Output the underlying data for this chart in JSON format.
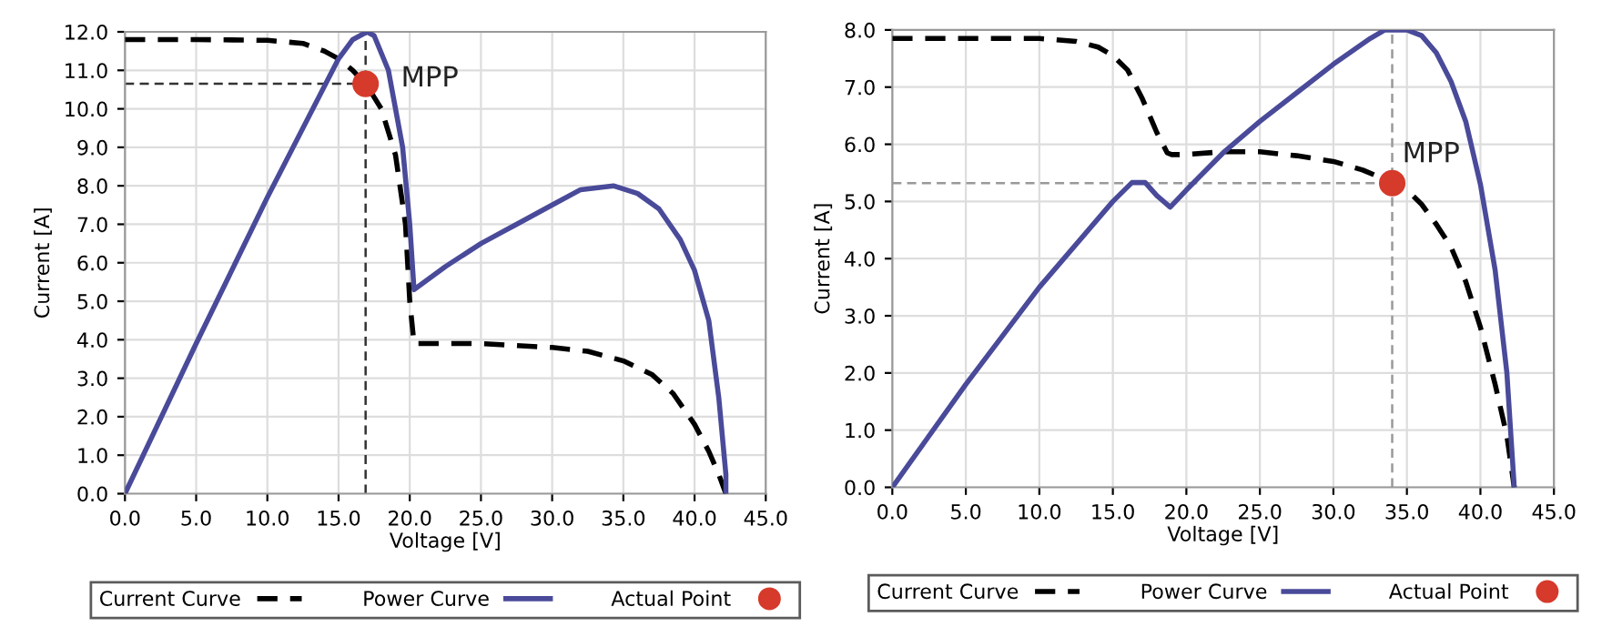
{
  "chart_data": [
    {
      "type": "line",
      "xlabel": "Voltage [V]",
      "ylabel": "Current [A]",
      "xlim": [
        0,
        45
      ],
      "ylim": [
        0,
        12
      ],
      "xticks": [
        {
          "value": 0,
          "label": "0.0"
        },
        {
          "value": 5,
          "label": "5.0"
        },
        {
          "value": 10,
          "label": "10.0"
        },
        {
          "value": 15,
          "label": "15.0"
        },
        {
          "value": 20,
          "label": "20.0"
        },
        {
          "value": 25,
          "label": "25.0"
        },
        {
          "value": 30,
          "label": "30.0"
        },
        {
          "value": 35,
          "label": "35.0"
        },
        {
          "value": 40,
          "label": "40.0"
        },
        {
          "value": 45,
          "label": "45.0"
        }
      ],
      "yticks": [
        {
          "value": 0,
          "label": "0.0"
        },
        {
          "value": 1,
          "label": "1.0"
        },
        {
          "value": 2,
          "label": "2.0"
        },
        {
          "value": 3,
          "label": "3.0"
        },
        {
          "value": 4,
          "label": "4.0"
        },
        {
          "value": 5,
          "label": "5.0"
        },
        {
          "value": 6,
          "label": "6.0"
        },
        {
          "value": 7,
          "label": "7.0"
        },
        {
          "value": 8,
          "label": "8.0"
        },
        {
          "value": 9,
          "label": "9.0"
        },
        {
          "value": 10,
          "label": "10.0"
        },
        {
          "value": 11,
          "label": "11.0"
        },
        {
          "value": 12,
          "label": "12.0"
        }
      ],
      "grid": true,
      "legend": "bottom",
      "series": [
        {
          "name": "Current Curve",
          "color": "#000000",
          "line_style": "dashed",
          "x": [
            0,
            5,
            10,
            12.5,
            14,
            15,
            16,
            17,
            18,
            19,
            19.7,
            20,
            20.3,
            22,
            25,
            27.5,
            30,
            32.5,
            35,
            37,
            38.5,
            40,
            41,
            41.7,
            42.2
          ],
          "values": [
            11.8,
            11.8,
            11.78,
            11.7,
            11.5,
            11.3,
            11.0,
            10.6,
            10.0,
            8.8,
            7.0,
            5.0,
            3.9,
            3.9,
            3.9,
            3.85,
            3.8,
            3.7,
            3.45,
            3.1,
            2.6,
            1.8,
            1.1,
            0.5,
            0
          ]
        },
        {
          "name": "Power Curve",
          "color": "#4a4a9a",
          "line_style": "solid",
          "x": [
            0,
            5,
            10,
            15,
            16,
            17,
            17.5,
            18.5,
            19.5,
            20,
            20.3,
            22.5,
            25,
            27.5,
            30,
            32,
            34.3,
            36,
            37.5,
            39,
            40,
            41,
            41.7,
            42.2,
            42.2
          ],
          "values": [
            0,
            3.9,
            7.7,
            11.3,
            11.8,
            12.0,
            11.9,
            11.0,
            9.0,
            7.0,
            5.3,
            5.9,
            6.5,
            7.0,
            7.5,
            7.9,
            8.0,
            7.8,
            7.4,
            6.6,
            5.8,
            4.5,
            2.5,
            0.5,
            0
          ]
        },
        {
          "name": "Actual Point",
          "type": "scatter",
          "color": "#d63a2a",
          "marker": "circle",
          "x": [
            16.9
          ],
          "values": [
            10.65
          ]
        }
      ],
      "ref_lines": [
        {
          "axis": "x",
          "value": 16.9,
          "color": "#333333",
          "line_style": "dashed"
        },
        {
          "axis": "y",
          "value": 10.65,
          "color": "#333333",
          "line_style": "dashed"
        }
      ],
      "annotations": [
        {
          "text": "MPP",
          "x": 16.9,
          "y": 10.65
        }
      ]
    },
    {
      "type": "line",
      "xlabel": "Voltage [V]",
      "ylabel": "Current [A]",
      "xlim": [
        0,
        45
      ],
      "ylim": [
        0,
        8
      ],
      "xticks": [
        {
          "value": 0,
          "label": "0.0"
        },
        {
          "value": 5,
          "label": "5.0"
        },
        {
          "value": 10,
          "label": "10.0"
        },
        {
          "value": 15,
          "label": "15.0"
        },
        {
          "value": 20,
          "label": "20.0"
        },
        {
          "value": 25,
          "label": "25.0"
        },
        {
          "value": 30,
          "label": "30.0"
        },
        {
          "value": 35,
          "label": "35.0"
        },
        {
          "value": 40,
          "label": "40.0"
        },
        {
          "value": 45,
          "label": "45.0"
        }
      ],
      "yticks": [
        {
          "value": 0,
          "label": "0.0"
        },
        {
          "value": 1,
          "label": "1.0"
        },
        {
          "value": 2,
          "label": "2.0"
        },
        {
          "value": 3,
          "label": "3.0"
        },
        {
          "value": 4,
          "label": "4.0"
        },
        {
          "value": 5,
          "label": "5.0"
        },
        {
          "value": 6,
          "label": "6.0"
        },
        {
          "value": 7,
          "label": "7.0"
        },
        {
          "value": 8,
          "label": "8.0"
        }
      ],
      "grid": true,
      "legend": "bottom",
      "series": [
        {
          "name": "Current Curve",
          "color": "#000000",
          "line_style": "dashed",
          "x": [
            0,
            5,
            10,
            12.5,
            14,
            15,
            16,
            17,
            18,
            18.7,
            19,
            20,
            22.5,
            25,
            27.5,
            30,
            32,
            34,
            35,
            36,
            37,
            38,
            39,
            40,
            41,
            41.8,
            42.3
          ],
          "values": [
            7.85,
            7.85,
            7.85,
            7.8,
            7.7,
            7.55,
            7.3,
            6.8,
            6.2,
            5.85,
            5.82,
            5.82,
            5.87,
            5.87,
            5.8,
            5.7,
            5.55,
            5.33,
            5.2,
            4.95,
            4.6,
            4.2,
            3.6,
            2.8,
            1.8,
            0.9,
            0
          ]
        },
        {
          "name": "Power Curve",
          "color": "#4a4a9a",
          "line_style": "solid",
          "x": [
            0,
            5,
            10,
            15,
            16.3,
            17.2,
            18,
            18.9,
            20,
            22.5,
            25,
            27.5,
            30,
            32.5,
            33.5,
            35,
            36,
            37,
            38,
            39,
            40,
            41,
            41.8,
            42.3
          ],
          "values": [
            0,
            1.8,
            3.5,
            5.0,
            5.33,
            5.33,
            5.1,
            4.9,
            5.2,
            5.85,
            6.4,
            6.9,
            7.4,
            7.85,
            8.0,
            8.0,
            7.9,
            7.6,
            7.1,
            6.4,
            5.3,
            3.8,
            2.0,
            0
          ]
        },
        {
          "name": "Actual Point",
          "type": "scatter",
          "color": "#d63a2a",
          "marker": "circle",
          "x": [
            34
          ],
          "values": [
            5.32
          ]
        }
      ],
      "ref_lines": [
        {
          "axis": "x",
          "value": 34,
          "color": "#999999",
          "line_style": "dashed"
        },
        {
          "axis": "y",
          "value": 5.32,
          "color": "#999999",
          "line_style": "dashed"
        }
      ],
      "annotations": [
        {
          "text": "MPP",
          "x": 34,
          "y": 5.32
        }
      ]
    }
  ]
}
